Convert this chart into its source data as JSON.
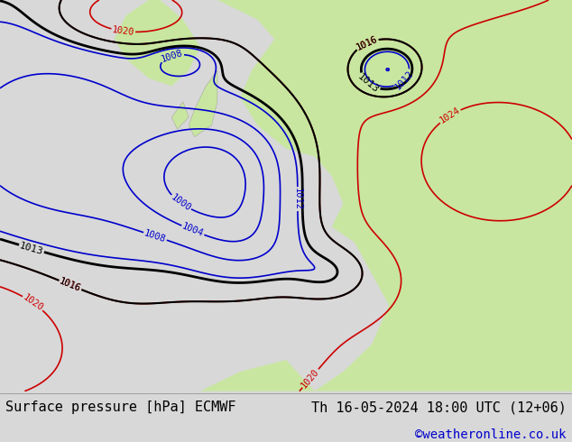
{
  "title_left": "Surface pressure [hPa] ECMWF",
  "title_right": "Th 16-05-2024 18:00 UTC (12+06)",
  "credit": "©weatheronline.co.uk",
  "bg_land_color": "#c8e6a0",
  "bg_sea_color": "#d8d8d8",
  "fig_bg_color": "#d8d8d8",
  "footer_bg": "#d8d8d8",
  "footer_text_color": "#000000",
  "credit_color": "#0000cc",
  "font_size_footer": 11,
  "font_size_credit": 10,
  "contour_red_color": "#cc0000",
  "contour_blue_color": "#0000cc",
  "contour_black_color": "#000000",
  "label_fontsize": 7.5,
  "figsize": [
    6.34,
    4.9
  ],
  "dpi": 100
}
